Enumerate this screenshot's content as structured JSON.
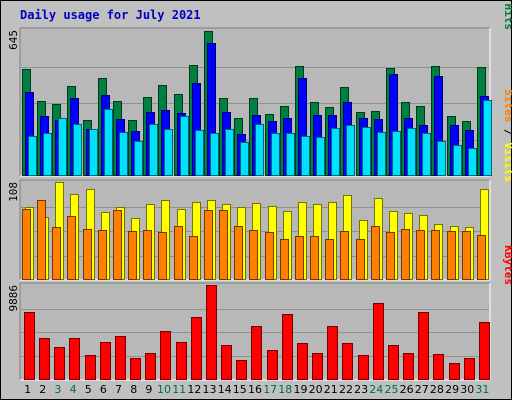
{
  "chart_data": {
    "type": "bar",
    "title": "Daily usage for July 2021",
    "categories": [
      "1",
      "2",
      "3",
      "4",
      "5",
      "6",
      "7",
      "8",
      "9",
      "10",
      "11",
      "12",
      "13",
      "14",
      "15",
      "16",
      "17",
      "18",
      "19",
      "20",
      "21",
      "22",
      "23",
      "24",
      "25",
      "26",
      "27",
      "28",
      "29",
      "30",
      "31"
    ],
    "weekend_days": [
      "3",
      "4",
      "10",
      "11",
      "17",
      "18",
      "24",
      "25",
      "31"
    ],
    "panels": [
      {
        "name": "hits-files-pages",
        "max_label": "645",
        "ylim": [
          0,
          645
        ],
        "grid": true,
        "right_label_parts": [
          {
            "text": "Pages",
            "color": "#00e0ff"
          },
          {
            "text": " / ",
            "color": "#000000"
          },
          {
            "text": "Files",
            "color": "#0000ff"
          },
          {
            "text": " / ",
            "color": "#000000"
          },
          {
            "text": "Hits",
            "color": "#008040"
          }
        ],
        "series": [
          {
            "name": "Hits",
            "color": "#008040",
            "values": [
              475,
              335,
              320,
              400,
              250,
              435,
              335,
              250,
              350,
              405,
              365,
              495,
              645,
              345,
              260,
              345,
              275,
              310,
              490,
              330,
              305,
              395,
              285,
              290,
              480,
              330,
              310,
              490,
              265,
              245,
              485
            ]
          },
          {
            "name": "Files",
            "color": "#0000ff",
            "values": [
              375,
              265,
              250,
              345,
              210,
              360,
              255,
              200,
              285,
              295,
              280,
              415,
              590,
              285,
              185,
              270,
              245,
              260,
              435,
              270,
              270,
              330,
              260,
              255,
              455,
              260,
              225,
              445,
              225,
              205,
              355
            ]
          },
          {
            "name": "Pages",
            "color": "#00e0ff",
            "values": [
              180,
              190,
              260,
              230,
              210,
              300,
              195,
              155,
              230,
              210,
              265,
              205,
              190,
              210,
              150,
              230,
              190,
              190,
              180,
              175,
              215,
              225,
              220,
              195,
              200,
              215,
              190,
              155,
              140,
              125,
              340
            ]
          }
        ]
      },
      {
        "name": "visits-sites",
        "max_label": "108",
        "ylim": [
          0,
          108
        ],
        "grid": true,
        "right_label_parts": [
          {
            "text": "Sites",
            "color": "#ff8000"
          },
          {
            "text": " / ",
            "color": "#000000"
          },
          {
            "text": "Visits",
            "color": "#ffff00"
          }
        ],
        "series": [
          {
            "name": "Visits",
            "color": "#ffff00",
            "values": [
              80,
              69,
              108,
              95,
              100,
              75,
              80,
              68,
              84,
              88,
              78,
              86,
              88,
              84,
              80,
              85,
              82,
              76,
              86,
              84,
              86,
              94,
              66,
              90,
              76,
              74,
              72,
              62,
              60,
              58,
              100
            ]
          },
          {
            "name": "Sites",
            "color": "#ff8000",
            "values": [
              78,
              88,
              58,
              71,
              56,
              55,
              77,
              54,
              55,
              53,
              60,
              48,
              77,
              77,
              59,
              55,
              53,
              45,
              48,
              48,
              45,
              54,
              45,
              59,
              53,
              56,
              55,
              55,
              54,
              54,
              50
            ]
          }
        ]
      },
      {
        "name": "kbytes",
        "max_label": "9886",
        "ylim": [
          0,
          9886
        ],
        "grid": true,
        "right_label_parts": [
          {
            "text": "KBytes",
            "color": "#ff0000"
          }
        ],
        "series": [
          {
            "name": "KBytes",
            "color": "#ff0000",
            "values": [
              7100,
              4400,
              3400,
              4400,
              2600,
              4000,
              4600,
              2300,
              2800,
              5100,
              3900,
              6600,
              9886,
              3600,
              2100,
              5600,
              3100,
              6900,
              3800,
              2800,
              5600,
              3800,
              2600,
              8000,
              3600,
              2800,
              7100,
              2700,
              1800,
              2300,
              6000
            ]
          }
        ]
      }
    ]
  },
  "colors": {
    "background": "#c0c0c0",
    "plot": "#b8b8b8",
    "title": "#0000c0",
    "weekday_label": "#000000",
    "weekend_label": "#006a4e"
  }
}
